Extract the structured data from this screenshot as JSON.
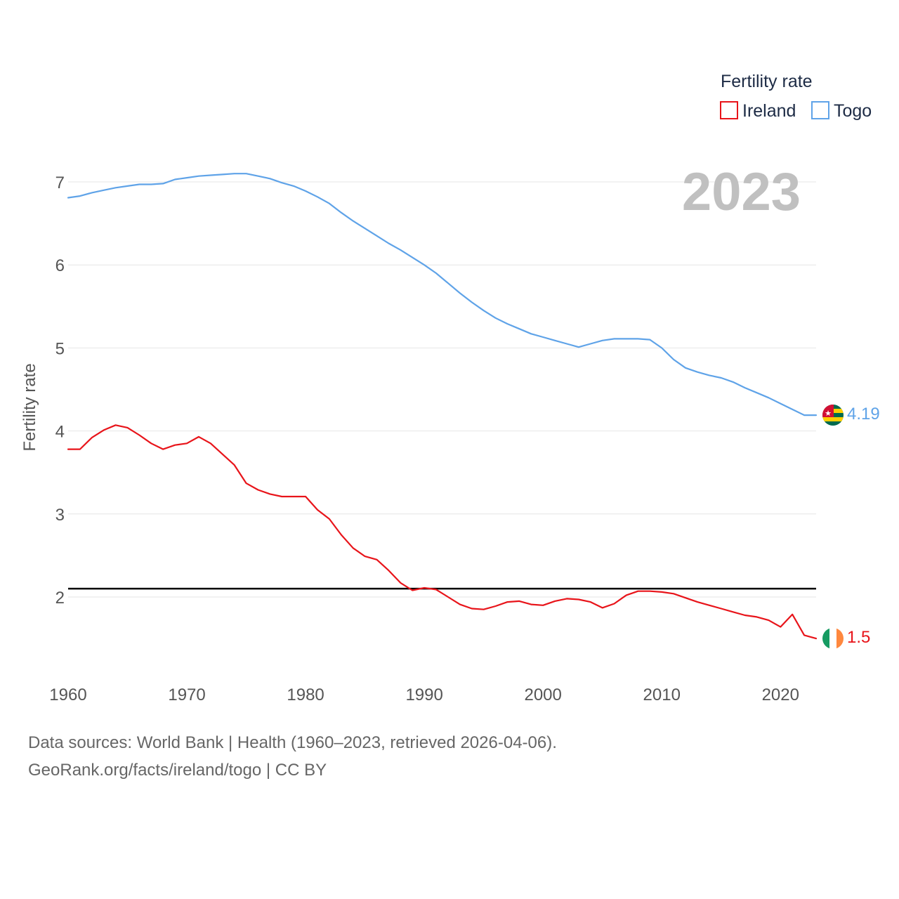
{
  "chart_data": {
    "type": "line",
    "year_label": "2023",
    "ylabel": "Fertility rate",
    "xlabel": "",
    "xlim": [
      1960,
      2023
    ],
    "ylim": [
      1.0,
      7.5
    ],
    "x_ticks": [
      1960,
      1970,
      1980,
      1990,
      2000,
      2010,
      2020
    ],
    "y_ticks": [
      2,
      3,
      4,
      5,
      6,
      7
    ],
    "reference_line": {
      "value": 2.1,
      "color": "#000000"
    },
    "legend": {
      "title": "Fertility rate",
      "position": "top-right"
    },
    "series": [
      {
        "name": "Ireland",
        "color": "#e8141a",
        "end_label": "1.5",
        "flag": "ireland-flag",
        "x": [
          1960,
          1961,
          1962,
          1963,
          1964,
          1965,
          1966,
          1967,
          1968,
          1969,
          1970,
          1971,
          1972,
          1973,
          1974,
          1975,
          1976,
          1977,
          1978,
          1979,
          1980,
          1981,
          1982,
          1983,
          1984,
          1985,
          1986,
          1987,
          1988,
          1989,
          1990,
          1991,
          1992,
          1993,
          1994,
          1995,
          1996,
          1997,
          1998,
          1999,
          2000,
          2001,
          2002,
          2003,
          2004,
          2005,
          2006,
          2007,
          2008,
          2009,
          2010,
          2011,
          2012,
          2013,
          2014,
          2015,
          2016,
          2017,
          2018,
          2019,
          2020,
          2021,
          2022,
          2023
        ],
        "values": [
          3.78,
          3.78,
          3.92,
          4.01,
          4.07,
          4.04,
          3.95,
          3.85,
          3.78,
          3.83,
          3.85,
          3.93,
          3.85,
          3.72,
          3.59,
          3.37,
          3.29,
          3.24,
          3.21,
          3.21,
          3.21,
          3.05,
          2.94,
          2.75,
          2.59,
          2.49,
          2.45,
          2.32,
          2.17,
          2.08,
          2.11,
          2.09,
          2.0,
          1.91,
          1.86,
          1.85,
          1.89,
          1.94,
          1.95,
          1.91,
          1.9,
          1.95,
          1.98,
          1.97,
          1.94,
          1.87,
          1.92,
          2.02,
          2.07,
          2.07,
          2.06,
          2.04,
          1.99,
          1.94,
          1.9,
          1.86,
          1.82,
          1.78,
          1.76,
          1.72,
          1.64,
          1.79,
          1.54,
          1.5
        ]
      },
      {
        "name": "Togo",
        "color": "#5fa3e8",
        "end_label": "4.19",
        "flag": "togo-flag",
        "x": [
          1960,
          1961,
          1962,
          1963,
          1964,
          1965,
          1966,
          1967,
          1968,
          1969,
          1970,
          1971,
          1972,
          1973,
          1974,
          1975,
          1976,
          1977,
          1978,
          1979,
          1980,
          1981,
          1982,
          1983,
          1984,
          1985,
          1986,
          1987,
          1988,
          1989,
          1990,
          1991,
          1992,
          1993,
          1994,
          1995,
          1996,
          1997,
          1998,
          1999,
          2000,
          2001,
          2002,
          2003,
          2004,
          2005,
          2006,
          2007,
          2008,
          2009,
          2010,
          2011,
          2012,
          2013,
          2014,
          2015,
          2016,
          2017,
          2018,
          2019,
          2020,
          2021,
          2022,
          2023
        ],
        "values": [
          6.81,
          6.83,
          6.87,
          6.9,
          6.93,
          6.95,
          6.97,
          6.97,
          6.98,
          7.03,
          7.05,
          7.07,
          7.08,
          7.09,
          7.1,
          7.1,
          7.07,
          7.04,
          6.99,
          6.95,
          6.89,
          6.82,
          6.74,
          6.63,
          6.53,
          6.44,
          6.35,
          6.26,
          6.18,
          6.09,
          6.0,
          5.9,
          5.78,
          5.66,
          5.55,
          5.45,
          5.36,
          5.29,
          5.23,
          5.17,
          5.13,
          5.09,
          5.05,
          5.01,
          5.05,
          5.09,
          5.11,
          5.11,
          5.11,
          5.1,
          5.0,
          4.86,
          4.76,
          4.71,
          4.67,
          4.64,
          4.59,
          4.52,
          4.46,
          4.4,
          4.33,
          4.26,
          4.19,
          4.19
        ]
      }
    ]
  },
  "footer": {
    "line1": "Data sources: World Bank | Health (1960–2023, retrieved 2026-04-06).",
    "line2": "GeoRank.org/facts/ireland/togo | CC BY"
  }
}
